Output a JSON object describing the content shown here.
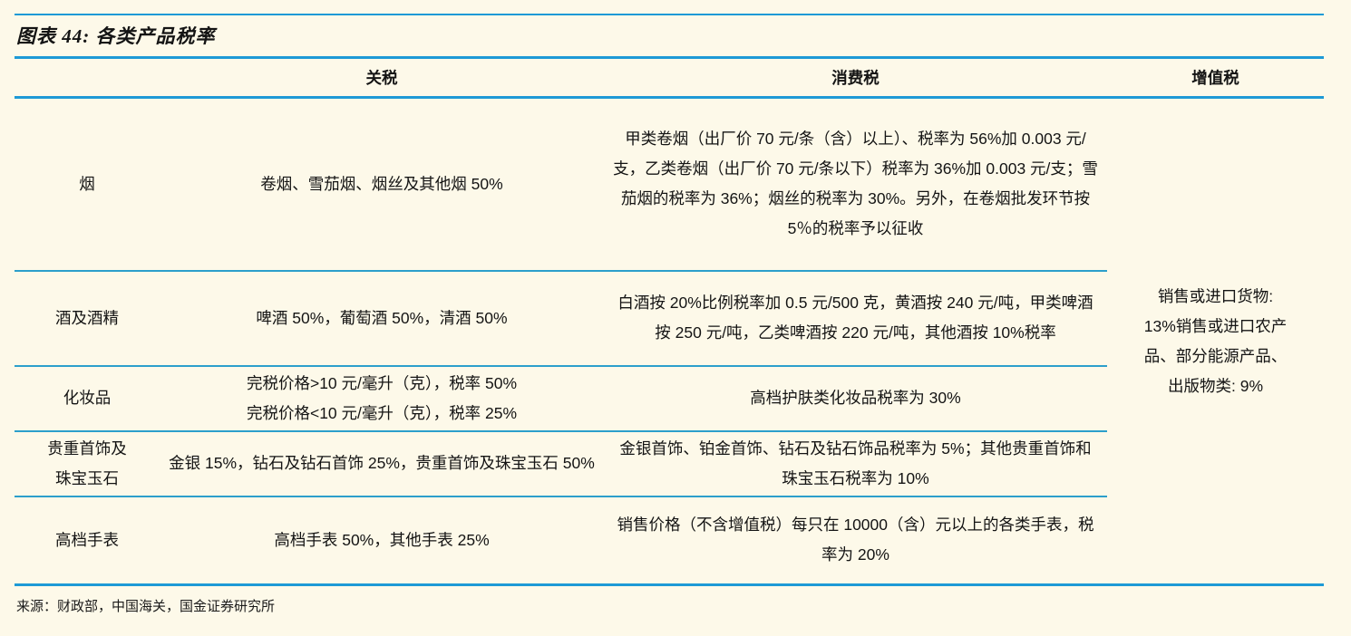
{
  "page": {
    "background_color": "#FDF9E9",
    "accent_line_color": "#1E9AD6",
    "separator_line_color": "#2C9FCB",
    "text_color": "#141414"
  },
  "title": "图表 44: 各类产品税率",
  "table": {
    "headers": {
      "category": "",
      "tariff": "关税",
      "consumption": "消费税",
      "vat": "增值税"
    },
    "rows": [
      {
        "category": "烟",
        "tariff": "卷烟、雪茄烟、烟丝及其他烟 50%",
        "consumption": "甲类卷烟（出厂价 70 元/条（含）以上）、税率为 56%加 0.003 元/支，乙类卷烟（出厂价 70 元/条以下）税率为 36%加 0.003 元/支；雪茄烟的税率为 36%；烟丝的税率为 30%。另外，在卷烟批发环节按 5％的税率予以征收"
      },
      {
        "category": "酒及酒精",
        "tariff": "啤酒 50%，葡萄酒 50%，清酒 50%",
        "consumption": "白酒按 20%比例税率加 0.5 元/500 克，黄酒按 240 元/吨，甲类啤酒按 250 元/吨，乙类啤酒按 220 元/吨，其他酒按 10%税率"
      },
      {
        "category": "化妆品",
        "tariff": "完税价格>10 元/毫升（克），税率 50%\n完税价格<10 元/毫升（克），税率 25%",
        "consumption": "高档护肤类化妆品税率为 30%"
      },
      {
        "category": "贵重首饰及\n珠宝玉石",
        "tariff": "金银 15%，钻石及钻石首饰 25%，贵重首饰及珠宝玉石 50%",
        "consumption": "金银首饰、铂金首饰、钻石及钻石饰品税率为 5%；其他贵重首饰和珠宝玉石税率为 10%"
      },
      {
        "category": "高档手表",
        "tariff": "高档手表 50%，其他手表 25%",
        "consumption": "销售价格（不含增值税）每只在 10000（含）元以上的各类手表，税率为 20%"
      }
    ],
    "vat_merged": "销售或进口货物:\n13%销售或进口农产\n品、部分能源产品、\n出版物类: 9%"
  },
  "footer": {
    "source": "来源：财政部，中国海关，国金证券研究所"
  }
}
